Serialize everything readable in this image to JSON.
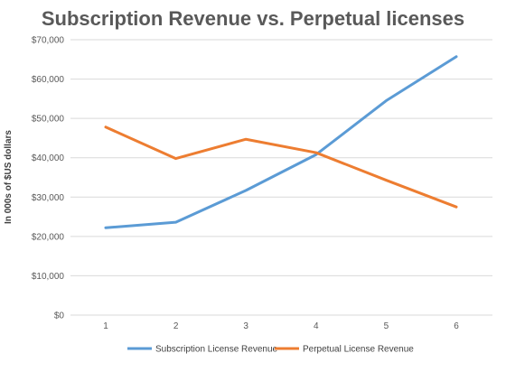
{
  "chart_data": {
    "type": "line",
    "title": "Subscription Revenue vs. Perpetual licenses",
    "xlabel": "",
    "ylabel": "In 000s of $US dollars",
    "categories": [
      "1",
      "2",
      "3",
      "4",
      "5",
      "6"
    ],
    "ylim": [
      0,
      70000
    ],
    "yticks": [
      0,
      10000,
      20000,
      30000,
      40000,
      50000,
      60000,
      70000
    ],
    "ytick_labels": [
      "$0",
      "$10,000",
      "$20,000",
      "$30,000",
      "$40,000",
      "$50,000",
      "$60,000",
      "$70,000"
    ],
    "grid": true,
    "legend_position": "bottom",
    "series": [
      {
        "name": "Subscription License Revenue",
        "color": "#5b9bd5",
        "values": [
          22200,
          23600,
          31700,
          40800,
          54500,
          65700
        ]
      },
      {
        "name": "Perpetual License Revenue",
        "color": "#ed7d31",
        "values": [
          47800,
          39800,
          44700,
          41300,
          34300,
          27500
        ]
      }
    ]
  }
}
